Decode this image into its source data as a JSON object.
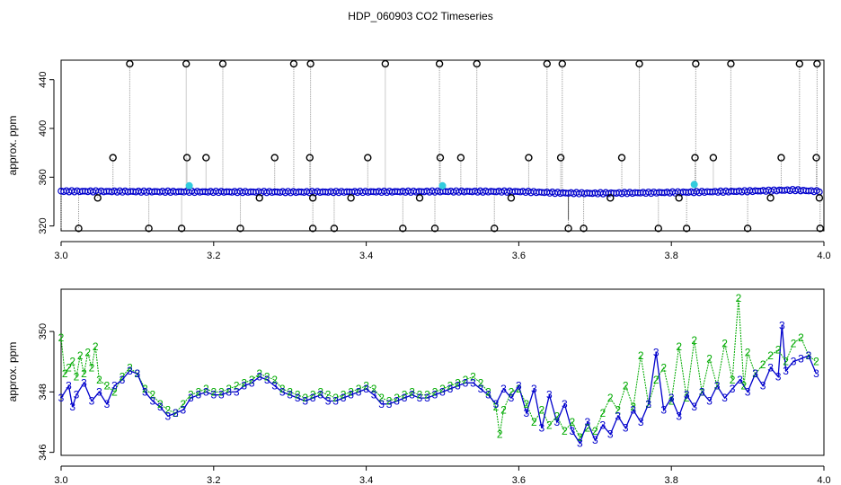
{
  "title": "HDP_060903  CO2 Timeseries",
  "colors": {
    "black": "#000000",
    "blue": "#0000cc",
    "green": "#00aa00",
    "cyan": "#33ccdd",
    "grey": "#999999"
  },
  "chart_data": [
    {
      "type": "scatter",
      "ylabel": "approx. ppm",
      "xlim": [
        3.0,
        4.0
      ],
      "ylim": [
        316,
        456
      ],
      "x_ticks": [
        "3.0",
        "3.2",
        "3.4",
        "3.6",
        "3.8",
        "4.0"
      ],
      "y_ticks": [
        "320",
        "360",
        "400",
        "440"
      ],
      "x_tick_values": [
        3.0,
        3.2,
        3.4,
        3.6,
        3.8,
        4.0
      ],
      "y_tick_values": [
        320,
        360,
        400,
        440
      ],
      "baseline_blue": [
        [
          3.0,
          348.5
        ],
        [
          3.1,
          348.2
        ],
        [
          3.2,
          348.0
        ],
        [
          3.3,
          347.8
        ],
        [
          3.4,
          348.0
        ],
        [
          3.5,
          348.3
        ],
        [
          3.6,
          348.2
        ],
        [
          3.66,
          347.0
        ],
        [
          3.7,
          346.8
        ],
        [
          3.8,
          347.5
        ],
        [
          3.9,
          348.5
        ],
        [
          3.96,
          349.5
        ],
        [
          3.99,
          348.5
        ]
      ],
      "outliers_high": [
        3.09,
        3.164,
        3.212,
        3.305,
        3.327,
        3.425,
        3.496,
        3.545,
        3.637,
        3.657,
        3.758,
        3.832,
        3.878,
        3.968,
        3.991
      ],
      "outliers_mid": [
        3.068,
        3.165,
        3.19,
        3.28,
        3.326,
        3.402,
        3.497,
        3.524,
        3.613,
        3.655,
        3.735,
        3.831,
        3.855,
        3.944,
        3.99
      ],
      "outliers_low": [
        3.023,
        3.115,
        3.158,
        3.235,
        3.33,
        3.358,
        3.448,
        3.49,
        3.568,
        3.665,
        3.685,
        3.783,
        3.82,
        3.9,
        3.995
      ],
      "outliers_mid_low": [
        3.048,
        3.26,
        3.33,
        3.38,
        3.47,
        3.59,
        3.72,
        3.81,
        3.93,
        3.994
      ],
      "cyan_points": [
        [
          3.168,
          353
        ],
        [
          3.5,
          353
        ],
        [
          3.83,
          354
        ]
      ],
      "value_high": 453,
      "value_mid": 376,
      "value_low": 318,
      "value_mid_low": 343
    },
    {
      "type": "line",
      "ylabel": "approx. ppm",
      "xlim": [
        3.0,
        4.0
      ],
      "ylim": [
        345.9,
        351.4
      ],
      "x_ticks": [
        "3.0",
        "3.2",
        "3.4",
        "3.6",
        "3.8",
        "4.0"
      ],
      "y_ticks": [
        "346",
        "348",
        "350"
      ],
      "x_tick_values": [
        3.0,
        3.2,
        3.4,
        3.6,
        3.8,
        4.0
      ],
      "y_tick_values": [
        346,
        348,
        350
      ],
      "series": [
        {
          "name": "2",
          "color": "#00aa00",
          "points": [
            [
              3.0,
              349.8
            ],
            [
              3.005,
              348.6
            ],
            [
              3.01,
              348.8
            ],
            [
              3.015,
              349.0
            ],
            [
              3.02,
              348.5
            ],
            [
              3.025,
              349.2
            ],
            [
              3.03,
              348.6
            ],
            [
              3.035,
              349.3
            ],
            [
              3.04,
              348.8
            ],
            [
              3.045,
              349.5
            ],
            [
              3.05,
              348.4
            ],
            [
              3.06,
              348.2
            ],
            [
              3.07,
              348.0
            ],
            [
              3.08,
              348.5
            ],
            [
              3.09,
              348.8
            ],
            [
              3.1,
              348.6
            ],
            [
              3.11,
              348.1
            ],
            [
              3.12,
              347.9
            ],
            [
              3.13,
              347.6
            ],
            [
              3.14,
              347.4
            ],
            [
              3.15,
              347.3
            ],
            [
              3.16,
              347.6
            ],
            [
              3.17,
              347.9
            ],
            [
              3.18,
              348.0
            ],
            [
              3.19,
              348.1
            ],
            [
              3.2,
              348.0
            ],
            [
              3.21,
              348.0
            ],
            [
              3.22,
              348.1
            ],
            [
              3.23,
              348.2
            ],
            [
              3.24,
              348.3
            ],
            [
              3.25,
              348.4
            ],
            [
              3.26,
              348.6
            ],
            [
              3.27,
              348.5
            ],
            [
              3.28,
              348.4
            ],
            [
              3.29,
              348.1
            ],
            [
              3.3,
              348.0
            ],
            [
              3.31,
              347.9
            ],
            [
              3.32,
              347.8
            ],
            [
              3.33,
              347.9
            ],
            [
              3.34,
              348.0
            ],
            [
              3.35,
              347.9
            ],
            [
              3.36,
              347.8
            ],
            [
              3.37,
              347.9
            ],
            [
              3.38,
              348.0
            ],
            [
              3.39,
              348.1
            ],
            [
              3.4,
              348.2
            ],
            [
              3.41,
              348.1
            ],
            [
              3.42,
              347.8
            ],
            [
              3.43,
              347.7
            ],
            [
              3.44,
              347.8
            ],
            [
              3.45,
              347.9
            ],
            [
              3.46,
              348.0
            ],
            [
              3.47,
              347.9
            ],
            [
              3.48,
              347.9
            ],
            [
              3.49,
              348.0
            ],
            [
              3.5,
              348.1
            ],
            [
              3.51,
              348.2
            ],
            [
              3.52,
              348.3
            ],
            [
              3.53,
              348.4
            ],
            [
              3.54,
              348.5
            ],
            [
              3.55,
              348.3
            ],
            [
              3.56,
              348.0
            ],
            [
              3.57,
              347.5
            ],
            [
              3.575,
              346.6
            ],
            [
              3.58,
              347.4
            ],
            [
              3.59,
              348.0
            ],
            [
              3.6,
              348.1
            ],
            [
              3.61,
              347.6
            ],
            [
              3.62,
              347.0
            ],
            [
              3.63,
              347.4
            ],
            [
              3.64,
              346.9
            ],
            [
              3.65,
              347.2
            ],
            [
              3.66,
              346.7
            ],
            [
              3.67,
              347.0
            ],
            [
              3.68,
              346.5
            ],
            [
              3.69,
              346.8
            ],
            [
              3.7,
              346.7
            ],
            [
              3.71,
              347.3
            ],
            [
              3.72,
              347.8
            ],
            [
              3.73,
              347.4
            ],
            [
              3.74,
              348.2
            ],
            [
              3.75,
              347.5
            ],
            [
              3.76,
              349.2
            ],
            [
              3.77,
              347.6
            ],
            [
              3.78,
              348.4
            ],
            [
              3.79,
              348.8
            ],
            [
              3.8,
              347.7
            ],
            [
              3.81,
              349.5
            ],
            [
              3.82,
              347.8
            ],
            [
              3.83,
              349.7
            ],
            [
              3.84,
              348.0
            ],
            [
              3.85,
              349.1
            ],
            [
              3.86,
              348.2
            ],
            [
              3.87,
              349.6
            ],
            [
              3.88,
              348.4
            ],
            [
              3.888,
              351.1
            ],
            [
              3.895,
              348.2
            ],
            [
              3.9,
              349.3
            ],
            [
              3.91,
              348.6
            ],
            [
              3.92,
              348.9
            ],
            [
              3.93,
              349.2
            ],
            [
              3.94,
              349.4
            ],
            [
              3.95,
              349.0
            ],
            [
              3.96,
              349.6
            ],
            [
              3.97,
              349.8
            ],
            [
              3.98,
              349.2
            ],
            [
              3.99,
              349.0
            ]
          ]
        },
        {
          "name": "3",
          "color": "#0000cc",
          "points": [
            [
              3.0,
              347.8
            ],
            [
              3.01,
              348.2
            ],
            [
              3.015,
              347.5
            ],
            [
              3.02,
              347.9
            ],
            [
              3.03,
              348.3
            ],
            [
              3.04,
              347.7
            ],
            [
              3.05,
              348.0
            ],
            [
              3.06,
              347.6
            ],
            [
              3.07,
              348.2
            ],
            [
              3.08,
              348.4
            ],
            [
              3.09,
              348.7
            ],
            [
              3.1,
              348.6
            ],
            [
              3.11,
              348.0
            ],
            [
              3.12,
              347.7
            ],
            [
              3.13,
              347.5
            ],
            [
              3.14,
              347.2
            ],
            [
              3.15,
              347.3
            ],
            [
              3.16,
              347.4
            ],
            [
              3.17,
              347.8
            ],
            [
              3.18,
              347.9
            ],
            [
              3.19,
              348.0
            ],
            [
              3.2,
              347.9
            ],
            [
              3.21,
              347.9
            ],
            [
              3.22,
              348.0
            ],
            [
              3.23,
              348.0
            ],
            [
              3.24,
              348.2
            ],
            [
              3.25,
              348.3
            ],
            [
              3.26,
              348.5
            ],
            [
              3.27,
              348.4
            ],
            [
              3.28,
              348.2
            ],
            [
              3.29,
              348.0
            ],
            [
              3.3,
              347.9
            ],
            [
              3.31,
              347.8
            ],
            [
              3.32,
              347.7
            ],
            [
              3.33,
              347.8
            ],
            [
              3.34,
              347.9
            ],
            [
              3.35,
              347.7
            ],
            [
              3.36,
              347.7
            ],
            [
              3.37,
              347.8
            ],
            [
              3.38,
              347.9
            ],
            [
              3.39,
              348.0
            ],
            [
              3.4,
              348.1
            ],
            [
              3.41,
              347.9
            ],
            [
              3.42,
              347.6
            ],
            [
              3.43,
              347.6
            ],
            [
              3.44,
              347.7
            ],
            [
              3.45,
              347.8
            ],
            [
              3.46,
              347.9
            ],
            [
              3.47,
              347.8
            ],
            [
              3.48,
              347.8
            ],
            [
              3.49,
              347.9
            ],
            [
              3.5,
              348.0
            ],
            [
              3.51,
              348.1
            ],
            [
              3.52,
              348.2
            ],
            [
              3.53,
              348.3
            ],
            [
              3.54,
              348.3
            ],
            [
              3.55,
              348.1
            ],
            [
              3.56,
              347.9
            ],
            [
              3.57,
              347.6
            ],
            [
              3.58,
              348.1
            ],
            [
              3.59,
              347.8
            ],
            [
              3.6,
              348.2
            ],
            [
              3.61,
              347.3
            ],
            [
              3.62,
              348.1
            ],
            [
              3.63,
              346.8
            ],
            [
              3.64,
              347.9
            ],
            [
              3.65,
              347.0
            ],
            [
              3.66,
              347.6
            ],
            [
              3.67,
              346.7
            ],
            [
              3.68,
              346.3
            ],
            [
              3.69,
              347.0
            ],
            [
              3.7,
              346.4
            ],
            [
              3.71,
              346.9
            ],
            [
              3.72,
              346.6
            ],
            [
              3.73,
              347.2
            ],
            [
              3.74,
              346.8
            ],
            [
              3.75,
              347.4
            ],
            [
              3.76,
              347.0
            ],
            [
              3.77,
              347.6
            ],
            [
              3.78,
              349.3
            ],
            [
              3.79,
              347.4
            ],
            [
              3.8,
              347.8
            ],
            [
              3.81,
              347.2
            ],
            [
              3.82,
              347.9
            ],
            [
              3.83,
              347.5
            ],
            [
              3.84,
              348.0
            ],
            [
              3.85,
              347.7
            ],
            [
              3.86,
              348.2
            ],
            [
              3.87,
              347.8
            ],
            [
              3.88,
              348.1
            ],
            [
              3.89,
              348.4
            ],
            [
              3.9,
              348.0
            ],
            [
              3.91,
              348.6
            ],
            [
              3.92,
              348.2
            ],
            [
              3.93,
              348.8
            ],
            [
              3.94,
              348.5
            ],
            [
              3.945,
              350.2
            ],
            [
              3.95,
              348.7
            ],
            [
              3.96,
              349.0
            ],
            [
              3.97,
              349.1
            ],
            [
              3.98,
              349.2
            ],
            [
              3.99,
              348.6
            ]
          ]
        }
      ]
    }
  ]
}
